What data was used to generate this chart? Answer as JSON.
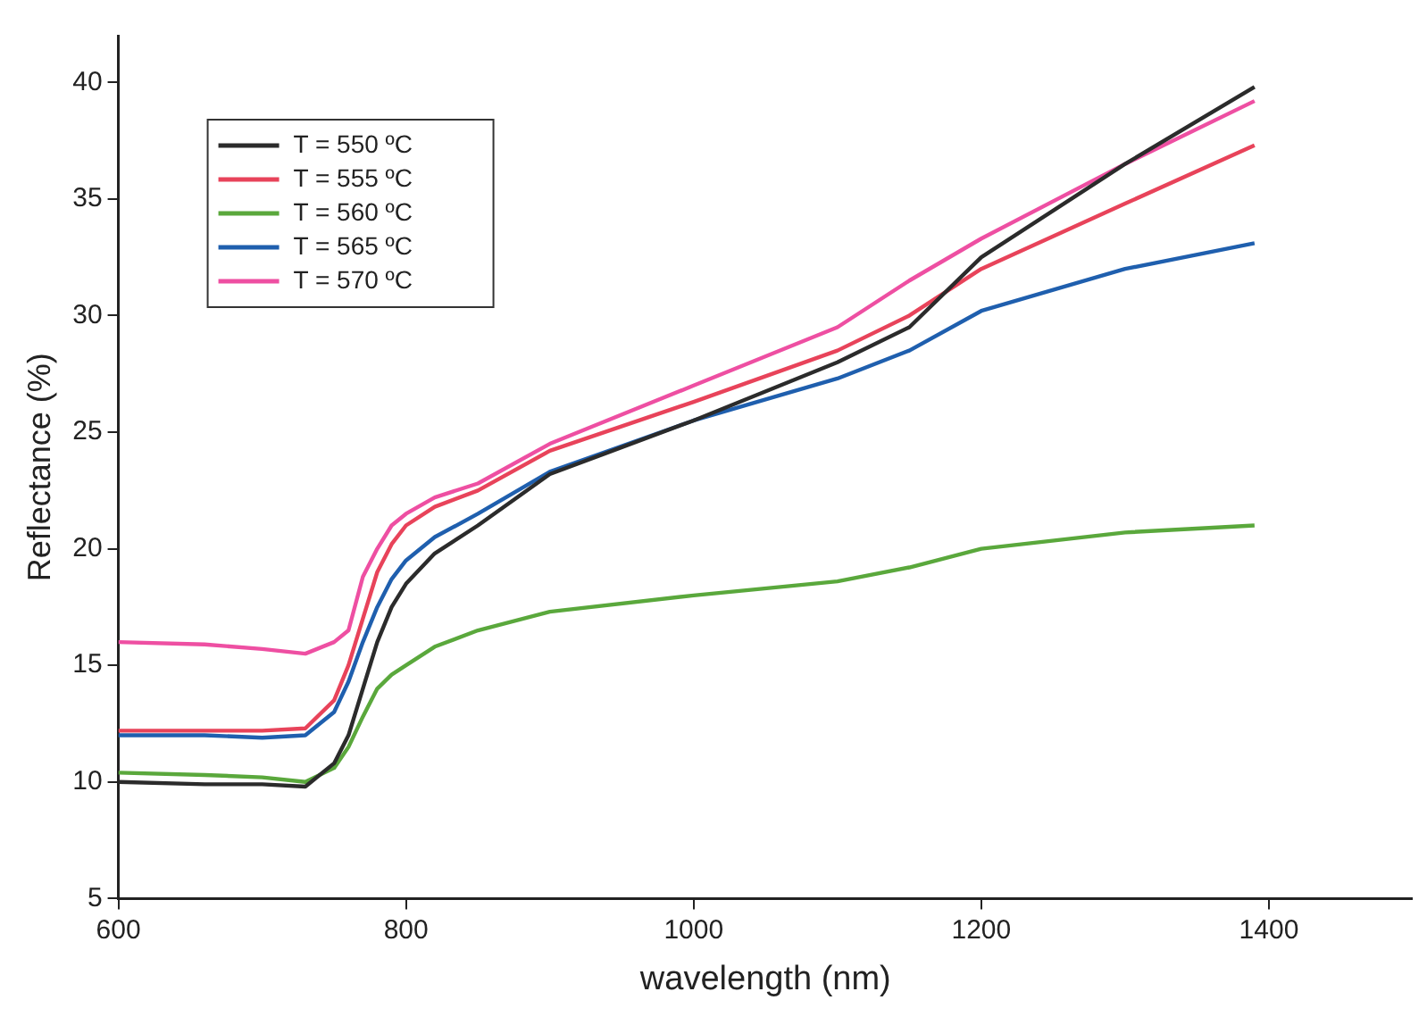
{
  "chart_data": {
    "type": "line",
    "xlabel": "wavelength (nm)",
    "ylabel": "Reflectance (%)",
    "x": [
      600,
      660,
      700,
      730,
      750,
      760,
      770,
      780,
      790,
      800,
      820,
      850,
      900,
      1000,
      1100,
      1150,
      1200,
      1300,
      1390
    ],
    "series": [
      {
        "name": "T = 550 ºC",
        "color": "#2b2b2b",
        "values": [
          10,
          9.9,
          9.9,
          9.8,
          10.8,
          12,
          14,
          16,
          17.5,
          18.5,
          19.8,
          21,
          23.2,
          25.5,
          28,
          29.5,
          32.5,
          36.5,
          39.8
        ]
      },
      {
        "name": "T = 555 ºC",
        "color": "#e8435a",
        "values": [
          12.2,
          12.2,
          12.2,
          12.3,
          13.5,
          15,
          17,
          19,
          20.2,
          21,
          21.8,
          22.5,
          24.2,
          26.3,
          28.5,
          30,
          32,
          34.8,
          37.3
        ]
      },
      {
        "name": "T = 560 ºC",
        "color": "#5aa83c",
        "values": [
          10.4,
          10.3,
          10.2,
          10,
          10.6,
          11.5,
          12.8,
          14,
          14.6,
          15,
          15.8,
          16.5,
          17.3,
          18,
          18.6,
          19.2,
          20,
          20.7,
          21
        ]
      },
      {
        "name": "T = 565 ºC",
        "color": "#1f5fae",
        "values": [
          12,
          12,
          11.9,
          12,
          13,
          14.3,
          16,
          17.5,
          18.7,
          19.5,
          20.5,
          21.5,
          23.3,
          25.5,
          27.3,
          28.5,
          30.2,
          32,
          33.1
        ]
      },
      {
        "name": "T = 570 ºC",
        "color": "#ee4fa2",
        "values": [
          16,
          15.9,
          15.7,
          15.5,
          16,
          16.5,
          18.8,
          20,
          21,
          21.5,
          22.2,
          22.8,
          24.5,
          27,
          29.5,
          31.5,
          33.3,
          36.5,
          39.2
        ]
      }
    ],
    "xlim": [
      600,
      1500
    ],
    "xticks": [
      600,
      800,
      1000,
      1200,
      1400
    ],
    "ylim": [
      5,
      42
    ],
    "yticks": [
      5,
      10,
      15,
      20,
      25,
      30,
      35,
      40
    ],
    "grid": false,
    "legend": "top left",
    "line_style": "solid",
    "marker": "none"
  }
}
